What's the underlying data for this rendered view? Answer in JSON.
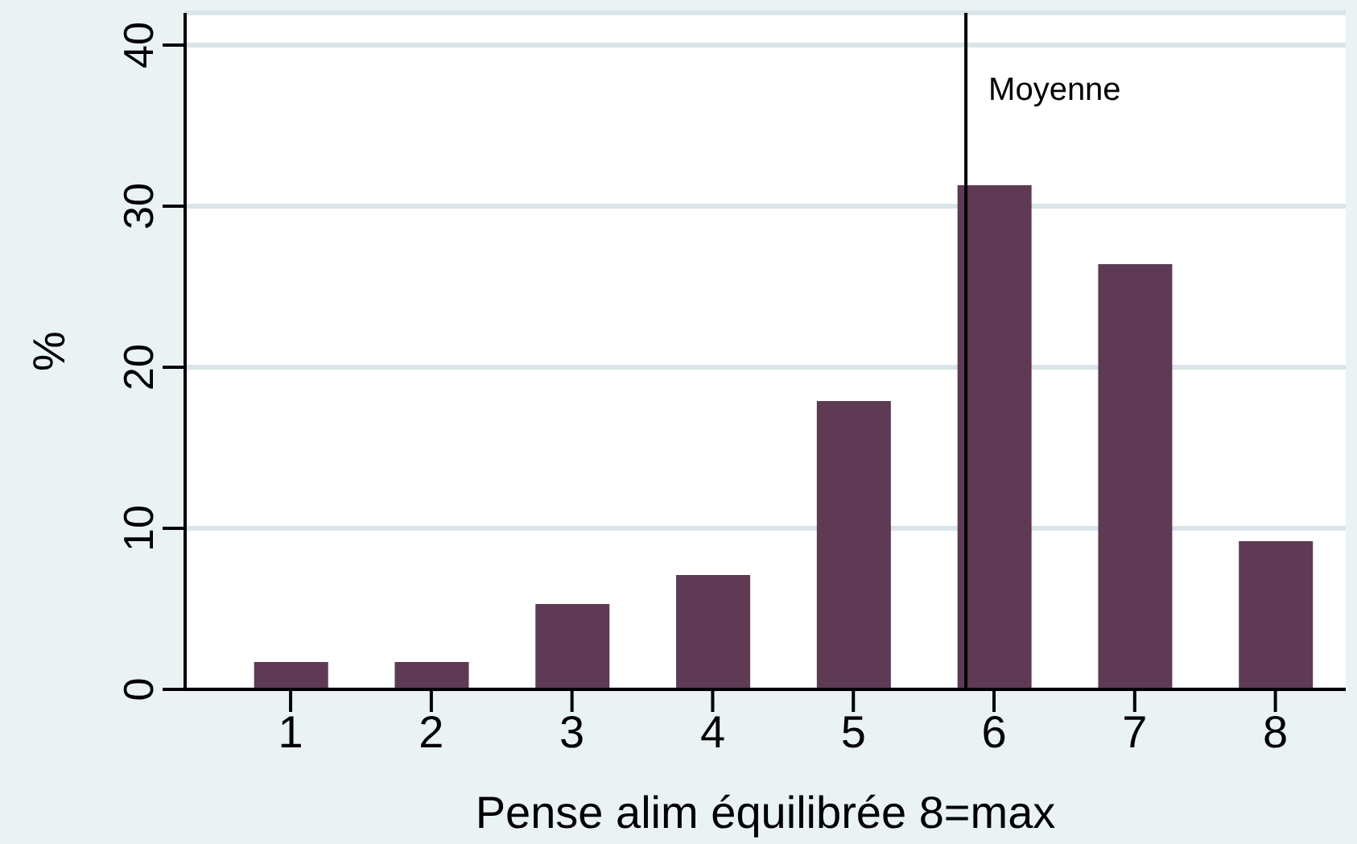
{
  "chart_data": {
    "type": "bar",
    "xlabel": "Pense alim équilibrée 8=max",
    "ylabel": "%",
    "x": [
      1,
      2,
      3,
      4,
      5,
      6,
      7,
      8
    ],
    "values": [
      1.7,
      1.7,
      5.3,
      7.1,
      17.9,
      31.3,
      26.4,
      9.2
    ],
    "color": "#5e3a54",
    "xlim": [
      0.25,
      8.5
    ],
    "xticks": [
      1,
      2,
      3,
      4,
      5,
      6,
      7,
      8
    ],
    "ylim": [
      0,
      42
    ],
    "yticks": [
      0,
      10,
      20,
      30,
      40
    ],
    "grid": "y",
    "ref_lines": [
      {
        "axis": "x",
        "value": 5.8,
        "label": "Moyenne",
        "color": "#000000"
      }
    ]
  }
}
